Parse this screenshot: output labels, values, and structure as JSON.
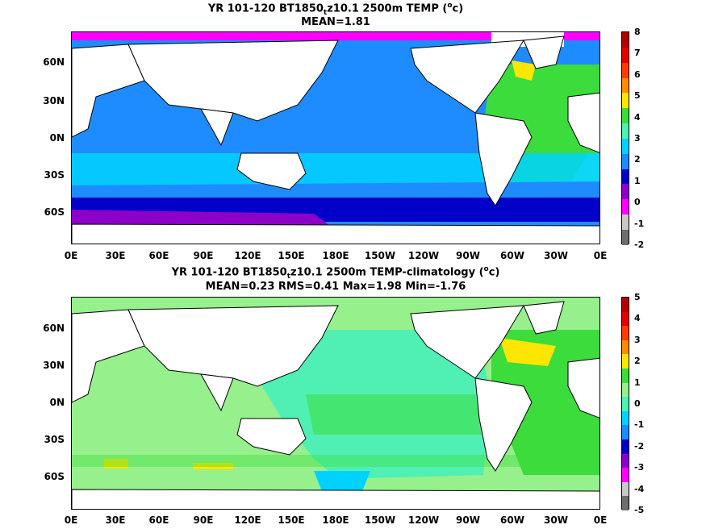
{
  "panels": [
    {
      "title_a": "YR 101-120 BT1850",
      "title_sub": "t",
      "title_b": "z10.1 2500m TEMP (",
      "title_sup": "o",
      "title_c": "c)",
      "stats": "MEAN=1.81",
      "colorbar_labels": [
        "8",
        "7",
        "6",
        "5",
        "4",
        "3",
        "2",
        "1",
        "0",
        "-1",
        "-2"
      ],
      "colorbar_colors": [
        "#b40000",
        "#e60000",
        "#ff3c00",
        "#ff8c00",
        "#ffe600",
        "#3cdc3c",
        "#50f0b4",
        "#00d2ff",
        "#1e8cff",
        "#0000c8",
        "#8c00c8",
        "#ff00ff",
        "#c8c8c8",
        "#6e6e6e"
      ]
    },
    {
      "title_a": "YR 101-120 BT1850",
      "title_sub": "t",
      "title_b": "z10.1 2500m TEMP-climatology (",
      "title_sup": "o",
      "title_c": "c)",
      "stats": "MEAN=0.23   RMS=0.41   Max=1.98   Min=-1.76",
      "colorbar_labels": [
        "5",
        "4",
        "3",
        "2",
        "1",
        "0",
        "-1",
        "-2",
        "-3",
        "-4",
        "-5"
      ],
      "colorbar_colors": [
        "#b40000",
        "#e60000",
        "#ff3c00",
        "#ff8c00",
        "#ffe600",
        "#3cdc3c",
        "#96f08c",
        "#50f0b4",
        "#00d2ff",
        "#1e8cff",
        "#0000c8",
        "#8c00c8",
        "#ff00ff",
        "#c8c8c8",
        "#6e6e6e"
      ]
    }
  ],
  "lat_labels": [
    "60N",
    "30N",
    "0N",
    "30S",
    "60S"
  ],
  "lon_labels": [
    "0E",
    "30E",
    "60E",
    "90E",
    "120E",
    "150E",
    "180E",
    "150W",
    "120W",
    "90W",
    "60W",
    "30W",
    "0E"
  ]
}
